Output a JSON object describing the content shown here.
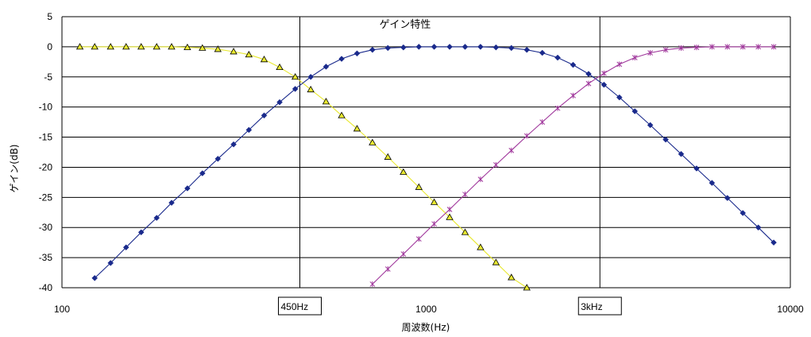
{
  "chart_data": {
    "type": "line",
    "title": "ゲイン特性",
    "xlabel": "周波数(Hz)",
    "ylabel": "ゲイン(dB)",
    "x_scale": "log",
    "xlim": [
      100,
      10000
    ],
    "ylim": [
      -40,
      5
    ],
    "x_ticks": [
      100,
      1000,
      10000
    ],
    "x_tick_labels": [
      "100",
      "1000",
      "10000"
    ],
    "y_ticks": [
      5,
      0,
      -5,
      -10,
      -15,
      -20,
      -25,
      -30,
      -35,
      -40
    ],
    "y_tick_labels": [
      "5",
      "0",
      "-5",
      "-10",
      "-15",
      "-20",
      "-25",
      "-30",
      "-35",
      "-40"
    ],
    "grid": true,
    "legend": "none",
    "annotations": [
      {
        "text": "450Hz",
        "x": 450
      },
      {
        "text": "3kHz",
        "x": 3000
      }
    ],
    "series": [
      {
        "color": "#e8e830",
        "marker": "triangle",
        "x": [
          112,
          123,
          136,
          150,
          165,
          182,
          200,
          221,
          243,
          268,
          296,
          326,
          359,
          396,
          437,
          482,
          531,
          586,
          646,
          712,
          785,
          866,
          955,
          1052,
          1160,
          1279,
          1410,
          1555,
          1714,
          1890
        ],
        "values": [
          0,
          0,
          0,
          0,
          0,
          0,
          0,
          -0.1,
          -0.2,
          -0.4,
          -0.8,
          -1.3,
          -2.1,
          -3.4,
          -5.0,
          -7.1,
          -9.1,
          -11.4,
          -13.6,
          -15.9,
          -18.3,
          -20.8,
          -23.3,
          -25.8,
          -28.3,
          -30.8,
          -33.3,
          -35.8,
          -38.3,
          -40.0
        ]
      },
      {
        "color": "#1a2a8c",
        "marker": "diamond",
        "x": [
          123,
          136,
          150,
          165,
          182,
          200,
          221,
          243,
          268,
          296,
          326,
          359,
          396,
          437,
          482,
          531,
          586,
          646,
          712,
          785,
          866,
          955,
          1052,
          1160,
          1279,
          1410,
          1555,
          1714,
          1890,
          2084,
          2297,
          2532,
          2792,
          3078,
          3393,
          3741,
          4124,
          4547,
          5013,
          5527,
          6093,
          6717,
          7406,
          8165,
          9001
        ],
        "values": [
          -38.4,
          -35.9,
          -33.3,
          -30.8,
          -28.4,
          -25.9,
          -23.5,
          -21.0,
          -18.6,
          -16.2,
          -13.8,
          -11.4,
          -9.2,
          -7.0,
          -5.0,
          -3.3,
          -2.0,
          -1.1,
          -0.5,
          -0.2,
          -0.1,
          0,
          0,
          0,
          0,
          0,
          -0.1,
          -0.2,
          -0.5,
          -1.0,
          -1.8,
          -3.0,
          -4.5,
          -6.3,
          -8.4,
          -10.7,
          -13.0,
          -15.4,
          -17.8,
          -20.2,
          -22.6,
          -25.1,
          -27.6,
          -30.0,
          -32.5
        ]
      },
      {
        "color": "#a0389c",
        "marker": "asterisk",
        "x": [
          712,
          785,
          866,
          955,
          1052,
          1160,
          1279,
          1410,
          1555,
          1714,
          1890,
          2084,
          2297,
          2532,
          2792,
          3078,
          3393,
          3741,
          4124,
          4547,
          5013,
          5527,
          6093,
          6717,
          7406,
          8165,
          9001
        ],
        "values": [
          -39.4,
          -36.9,
          -34.4,
          -31.9,
          -29.4,
          -27.0,
          -24.5,
          -22.0,
          -19.6,
          -17.2,
          -14.8,
          -12.5,
          -10.2,
          -8.1,
          -6.1,
          -4.4,
          -2.9,
          -1.8,
          -1.0,
          -0.5,
          -0.2,
          -0.1,
          0,
          0,
          0,
          0,
          0
        ]
      }
    ]
  }
}
